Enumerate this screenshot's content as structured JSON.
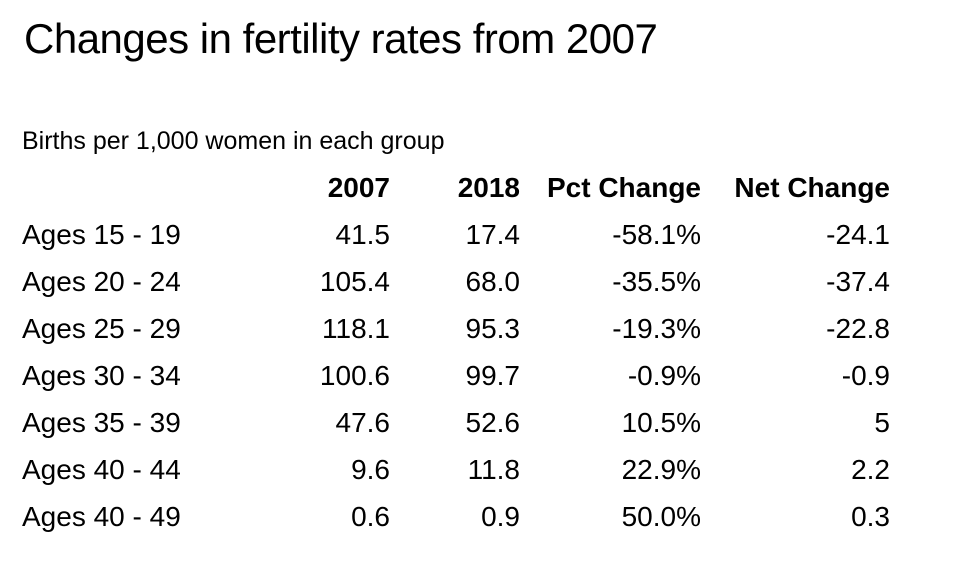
{
  "title": "Changes in fertility rates from 2007",
  "subtitle": "Births per 1,000 women in each group",
  "colors": {
    "background": "#ffffff",
    "text": "#000000"
  },
  "chart_data": {
    "type": "table",
    "title": "Changes in fertility rates from 2007",
    "subtitle": "Births per 1,000 women in each group",
    "columns": [
      "",
      "2007",
      "2018",
      "Pct Change",
      "Net Change"
    ],
    "categories": [
      "Ages 15 - 19",
      "Ages 20 - 24",
      "Ages 25 - 29",
      "Ages 30 - 34",
      "Ages 35 - 39",
      "Ages 40 - 44",
      "Ages 40 - 49"
    ],
    "series": [
      {
        "name": "2007",
        "values": [
          41.5,
          105.4,
          118.1,
          100.6,
          47.6,
          9.6,
          0.6
        ]
      },
      {
        "name": "2018",
        "values": [
          17.4,
          68.0,
          95.3,
          99.7,
          52.6,
          11.8,
          0.9
        ]
      },
      {
        "name": "Pct Change",
        "unit": "%",
        "values": [
          -58.1,
          -35.5,
          -19.3,
          -0.9,
          10.5,
          22.9,
          50.0
        ]
      },
      {
        "name": "Net Change",
        "values": [
          -24.1,
          -37.4,
          -22.8,
          -0.9,
          5,
          2.2,
          0.3
        ]
      }
    ],
    "rows": [
      [
        "Ages 15 - 19",
        "41.5",
        "17.4",
        "-58.1%",
        "-24.1"
      ],
      [
        "Ages 20 - 24",
        "105.4",
        "68.0",
        "-35.5%",
        "-37.4"
      ],
      [
        "Ages 25 - 29",
        "118.1",
        "95.3",
        "-19.3%",
        "-22.8"
      ],
      [
        "Ages 30 - 34",
        "100.6",
        "99.7",
        "-0.9%",
        "-0.9"
      ],
      [
        "Ages 35 - 39",
        "47.6",
        "52.6",
        "10.5%",
        "5"
      ],
      [
        "Ages 40 - 44",
        "9.6",
        "11.8",
        "22.9%",
        "2.2"
      ],
      [
        "Ages 40 - 49",
        "0.6",
        "0.9",
        "50.0%",
        "0.3"
      ]
    ]
  }
}
